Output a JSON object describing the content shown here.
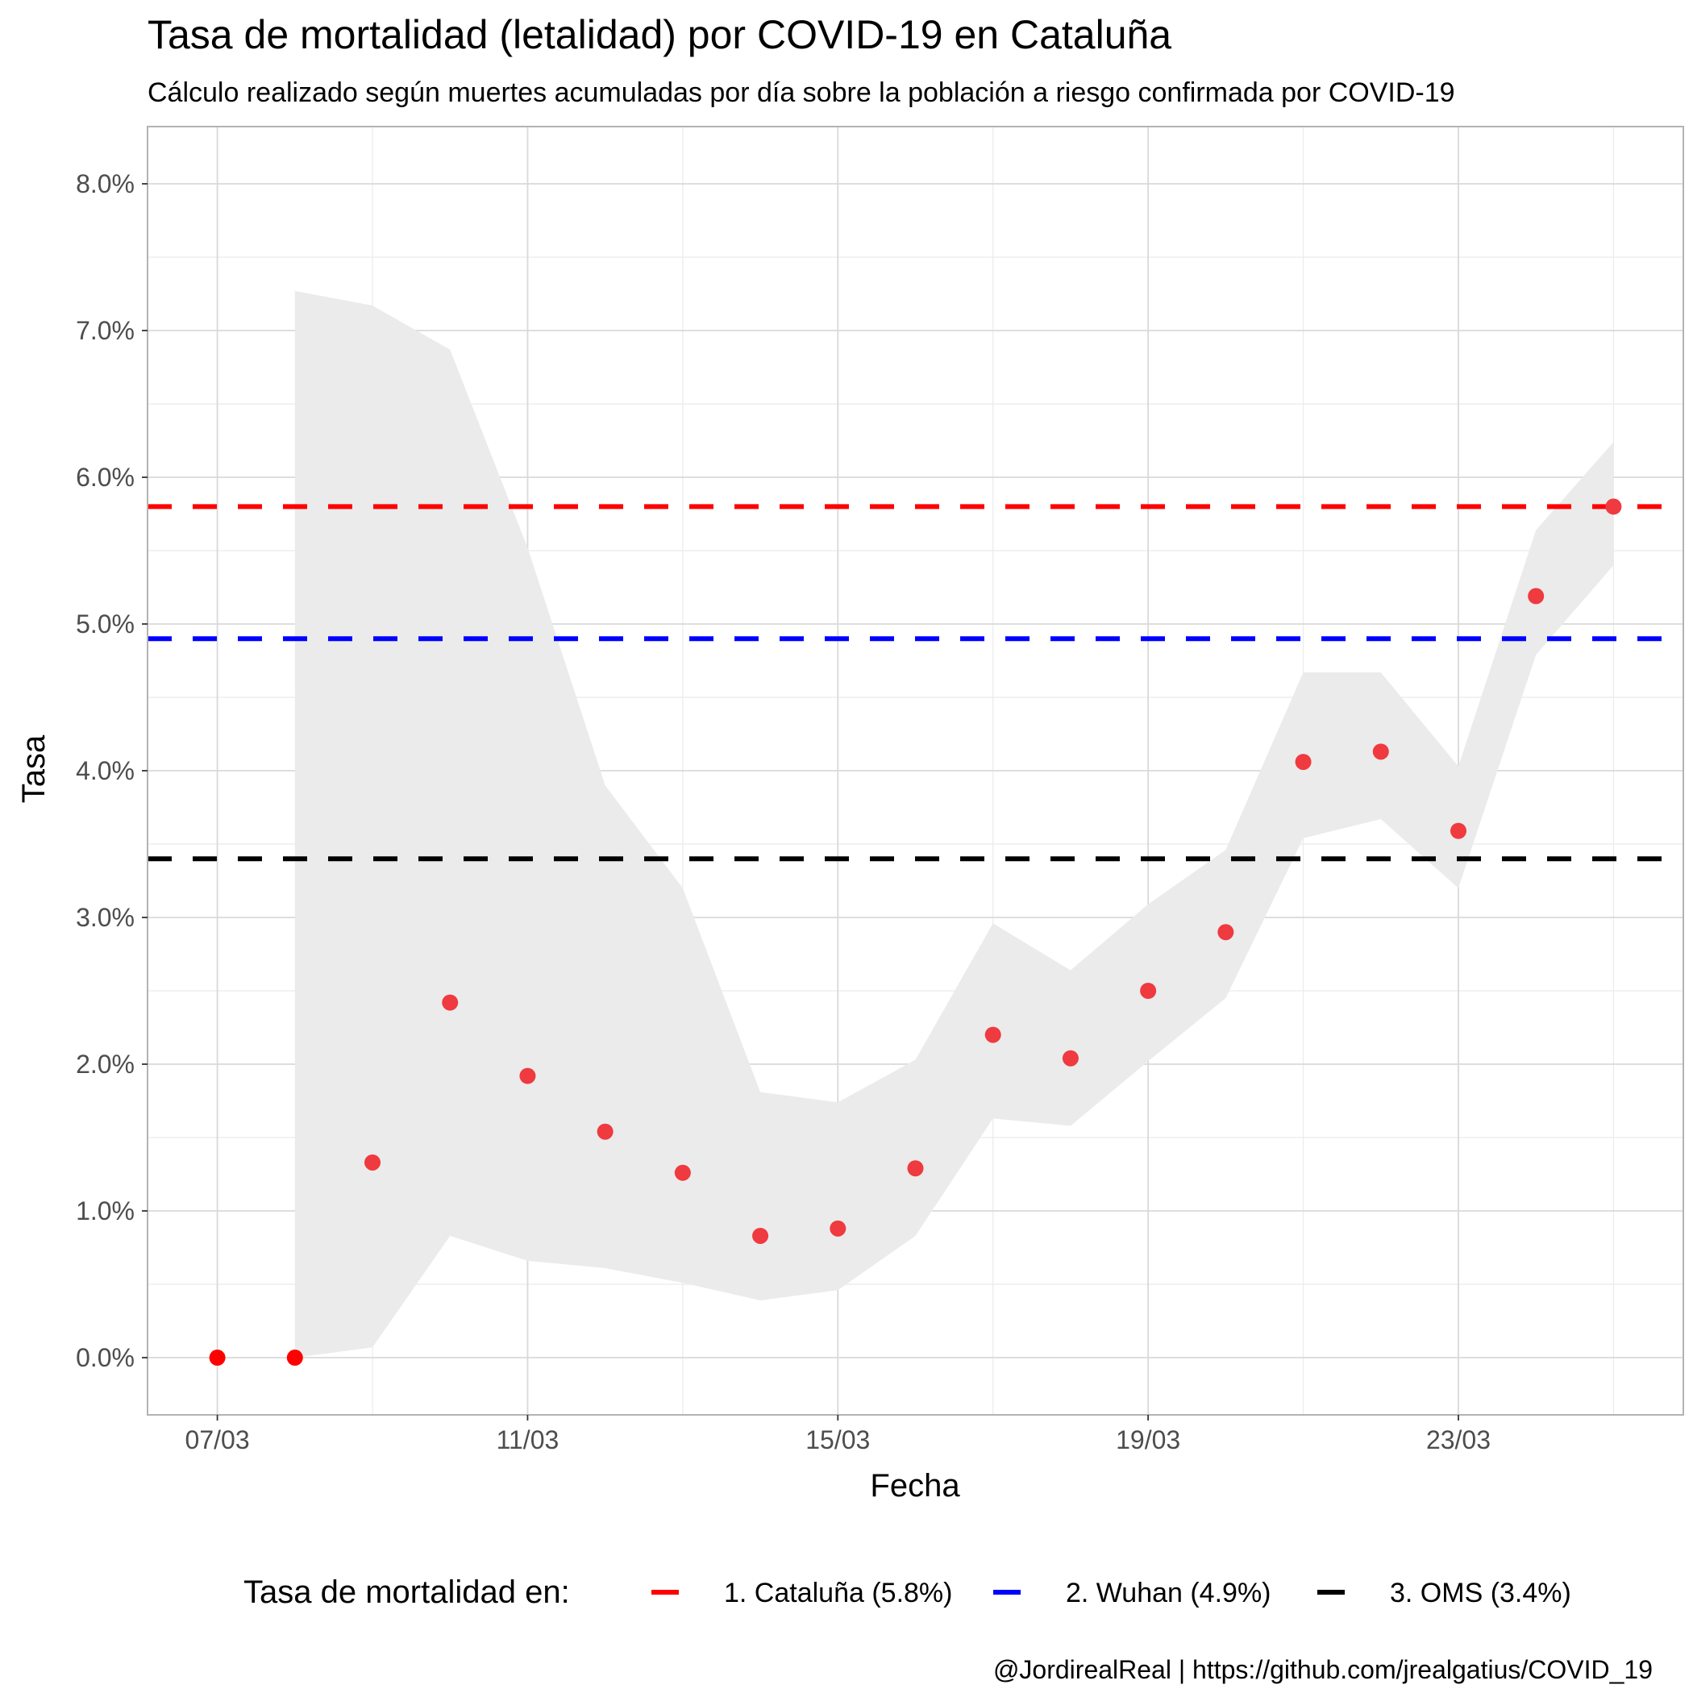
{
  "chart_data": {
    "type": "scatter",
    "title": "Tasa de mortalidad (letalidad) por COVID-19 en Cataluña",
    "subtitle": "Cálculo realizado según muertes acumuladas por día sobre la población a riesgo confirmada por COVID-19",
    "xlabel": "Fecha",
    "ylabel": "Tasa",
    "caption": "@JordirealReal | https://github.com/jrealgatius/COVID_19",
    "x_ticks": [
      {
        "day": 7,
        "label": "07/03"
      },
      {
        "day": 11,
        "label": "11/03"
      },
      {
        "day": 15,
        "label": "15/03"
      },
      {
        "day": 19,
        "label": "19/03"
      },
      {
        "day": 23,
        "label": "23/03"
      }
    ],
    "y_ticks": [
      {
        "value": 0,
        "label": "0.0%"
      },
      {
        "value": 1,
        "label": "1.0%"
      },
      {
        "value": 2,
        "label": "2.0%"
      },
      {
        "value": 3,
        "label": "3.0%"
      },
      {
        "value": 4,
        "label": "4.0%"
      },
      {
        "value": 5,
        "label": "5.0%"
      },
      {
        "value": 6,
        "label": "6.0%"
      },
      {
        "value": 7,
        "label": "7.0%"
      },
      {
        "value": 8,
        "label": "8.0%"
      }
    ],
    "xlim": [
      6.1,
      25.9
    ],
    "ylim": [
      -0.39,
      8.39
    ],
    "points": [
      {
        "day": 7,
        "date": "07/03",
        "value": 0.0
      },
      {
        "day": 8,
        "date": "08/03",
        "value": 0.0
      },
      {
        "day": 9,
        "date": "09/03",
        "value": 1.33
      },
      {
        "day": 10,
        "date": "10/03",
        "value": 2.42
      },
      {
        "day": 11,
        "date": "11/03",
        "value": 1.92
      },
      {
        "day": 12,
        "date": "12/03",
        "value": 1.54
      },
      {
        "day": 13,
        "date": "13/03",
        "value": 1.26
      },
      {
        "day": 14,
        "date": "14/03",
        "value": 0.83
      },
      {
        "day": 15,
        "date": "15/03",
        "value": 0.88
      },
      {
        "day": 16,
        "date": "16/03",
        "value": 1.29
      },
      {
        "day": 17,
        "date": "17/03",
        "value": 2.2
      },
      {
        "day": 18,
        "date": "18/03",
        "value": 2.04
      },
      {
        "day": 19,
        "date": "19/03",
        "value": 2.5
      },
      {
        "day": 20,
        "date": "20/03",
        "value": 2.9
      },
      {
        "day": 21,
        "date": "21/03",
        "value": 4.06
      },
      {
        "day": 22,
        "date": "22/03",
        "value": 4.13
      },
      {
        "day": 23,
        "date": "23/03",
        "value": 3.59
      },
      {
        "day": 24,
        "date": "24/03",
        "value": 5.19
      },
      {
        "day": 25,
        "date": "25/03",
        "value": 5.8
      }
    ],
    "ribbon": [
      {
        "day": 8,
        "lower": 0.0,
        "upper": 7.27
      },
      {
        "day": 9,
        "lower": 0.07,
        "upper": 7.17
      },
      {
        "day": 10,
        "lower": 0.83,
        "upper": 6.87
      },
      {
        "day": 11,
        "lower": 0.66,
        "upper": 5.52
      },
      {
        "day": 12,
        "lower": 0.61,
        "upper": 3.9
      },
      {
        "day": 13,
        "lower": 0.51,
        "upper": 3.2
      },
      {
        "day": 14,
        "lower": 0.39,
        "upper": 1.81
      },
      {
        "day": 15,
        "lower": 0.46,
        "upper": 1.74
      },
      {
        "day": 16,
        "lower": 0.83,
        "upper": 2.03
      },
      {
        "day": 17,
        "lower": 1.63,
        "upper": 2.96
      },
      {
        "day": 18,
        "lower": 1.58,
        "upper": 2.64
      },
      {
        "day": 19,
        "lower": 2.02,
        "upper": 3.09
      },
      {
        "day": 20,
        "lower": 2.45,
        "upper": 3.46
      },
      {
        "day": 21,
        "lower": 3.54,
        "upper": 4.67
      },
      {
        "day": 22,
        "lower": 3.67,
        "upper": 4.67
      },
      {
        "day": 23,
        "lower": 3.2,
        "upper": 4.03
      },
      {
        "day": 24,
        "lower": 4.79,
        "upper": 5.64
      },
      {
        "day": 25,
        "lower": 5.4,
        "upper": 6.24
      }
    ],
    "reference_lines": [
      {
        "name": "1. Cataluña (5.8%)",
        "value": 5.8,
        "color": "#ff0000"
      },
      {
        "name": "2. Wuhan (4.9%)",
        "value": 4.9,
        "color": "#0000ff"
      },
      {
        "name": "3. OMS (3.4%)",
        "value": 3.4,
        "color": "#000000"
      }
    ],
    "legend_title": "Tasa de mortalidad en:",
    "legend_position": "bottom",
    "point_color": "#ef3a3f",
    "ribbon_color": "#ebebeb",
    "grid": true
  }
}
